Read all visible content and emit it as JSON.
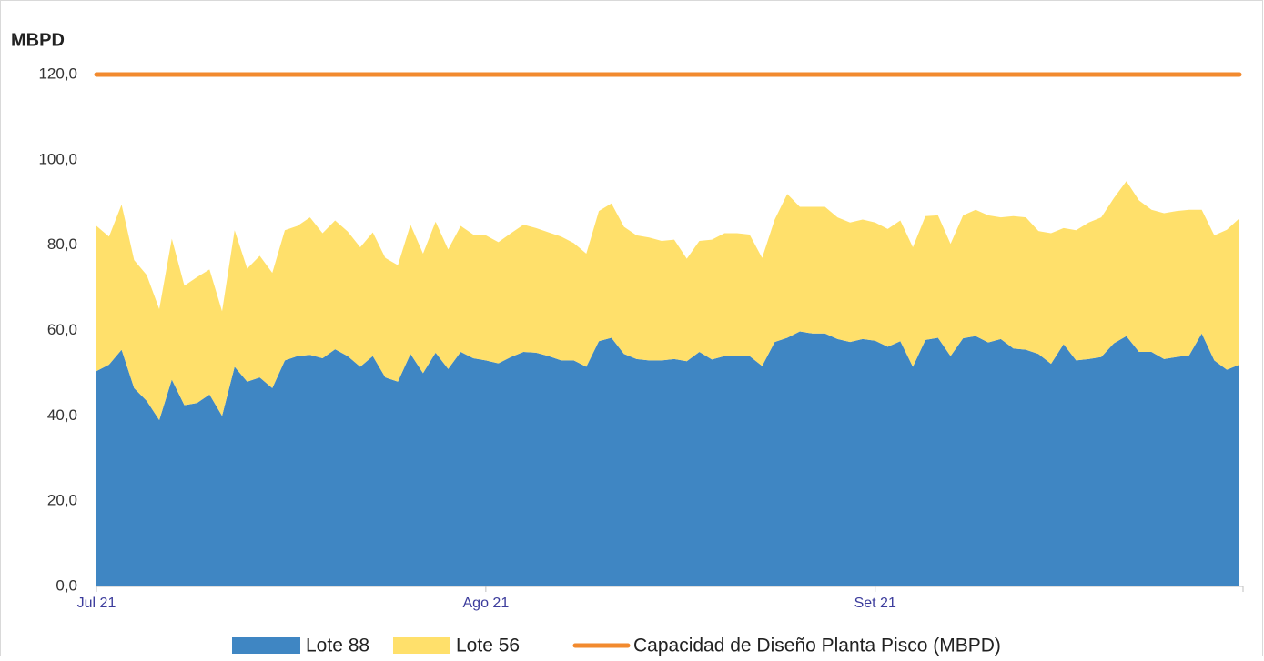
{
  "chart_data": {
    "type": "area",
    "stacked": true,
    "y_axis_label": "MBPD",
    "categories": [
      "Jul 21",
      null,
      null,
      null,
      null,
      null,
      null,
      null,
      null,
      null,
      null,
      null,
      null,
      null,
      null,
      null,
      null,
      null,
      null,
      null,
      null,
      null,
      null,
      null,
      null,
      null,
      null,
      null,
      null,
      null,
      null,
      "Ago 21",
      null,
      null,
      null,
      null,
      null,
      null,
      null,
      null,
      null,
      null,
      null,
      null,
      null,
      null,
      null,
      null,
      null,
      null,
      null,
      null,
      null,
      null,
      null,
      null,
      null,
      null,
      null,
      null,
      null,
      null,
      "Set 21",
      null,
      null,
      null,
      null,
      null,
      null,
      null,
      null,
      null,
      null,
      null,
      null,
      null,
      null,
      null,
      null,
      null,
      null,
      null,
      null,
      null,
      null,
      null,
      null,
      null,
      null,
      null,
      null,
      null
    ],
    "series": [
      {
        "name": "Lote 88",
        "color": "#3f86c3",
        "values": [
          50.5,
          52,
          55.5,
          46.5,
          43.5,
          39,
          48.5,
          42.5,
          43,
          45,
          40,
          51.5,
          48,
          49,
          46.5,
          53,
          54,
          54.3,
          53.5,
          55.6,
          54,
          51.5,
          54,
          49,
          48,
          54.5,
          50,
          54.8,
          51,
          55,
          53.5,
          53,
          52.3,
          53.8,
          55,
          54.8,
          54,
          53,
          53,
          51.5,
          57.5,
          58.3,
          54.5,
          53.3,
          53,
          53,
          53.3,
          52.8,
          55,
          53.2,
          54,
          54,
          54,
          51.7,
          57.3,
          58.3,
          59.8,
          59.3,
          59.3,
          58,
          57.3,
          58,
          57.6,
          56.2,
          57.5,
          51.5,
          57.8,
          58.3,
          54,
          58.2,
          58.7,
          57.2,
          58,
          55.8,
          55.5,
          54.5,
          52.2,
          56.8,
          53,
          53.3,
          53.8,
          57,
          58.7,
          55,
          55,
          53.3,
          53.8,
          54.2,
          59.3,
          53,
          50.8,
          52
        ]
      },
      {
        "name": "Lote 56",
        "color": "#ffe06b",
        "values": [
          34,
          30,
          34,
          30,
          29.5,
          26,
          33,
          28,
          29.5,
          29.3,
          24.5,
          32,
          26.5,
          28.5,
          27,
          30.5,
          30.5,
          32.2,
          29.3,
          30.2,
          29.2,
          28,
          29,
          28,
          27.3,
          30.3,
          28,
          30.7,
          28,
          29.5,
          29,
          29.3,
          28.4,
          29,
          29.8,
          29.2,
          29,
          29,
          27.5,
          26.5,
          30.5,
          31.5,
          29.8,
          29,
          28.8,
          28,
          28,
          24,
          26,
          28.1,
          28.8,
          28.8,
          28.5,
          25.3,
          28.7,
          33.7,
          29.2,
          29.7,
          29.7,
          28.5,
          28,
          28,
          27.7,
          27.6,
          28.3,
          28,
          29,
          28.7,
          26.3,
          28.8,
          29.6,
          29.8,
          28.5,
          31,
          31,
          28.8,
          30.6,
          27.2,
          30.5,
          32,
          32.7,
          34,
          36.3,
          35.5,
          33.3,
          34.2,
          34.2,
          34.1,
          29,
          29.3,
          32.8,
          34.3
        ]
      },
      {
        "name": "Capacidad de Diseño Planta Pisco (MBPD)",
        "color": "#f28a2e",
        "type": "line",
        "values": [
          120,
          120,
          120,
          120,
          120,
          120,
          120,
          120,
          120,
          120,
          120,
          120,
          120,
          120,
          120,
          120,
          120,
          120,
          120,
          120,
          120,
          120,
          120,
          120,
          120,
          120,
          120,
          120,
          120,
          120,
          120,
          120,
          120,
          120,
          120,
          120,
          120,
          120,
          120,
          120,
          120,
          120,
          120,
          120,
          120,
          120,
          120,
          120,
          120,
          120,
          120,
          120,
          120,
          120,
          120,
          120,
          120,
          120,
          120,
          120,
          120,
          120,
          120,
          120,
          120,
          120,
          120,
          120,
          120,
          120,
          120,
          120,
          120,
          120,
          120,
          120,
          120,
          120,
          120,
          120,
          120,
          120,
          120,
          120,
          120,
          120,
          120,
          120,
          120,
          120,
          120,
          120
        ]
      }
    ],
    "ylim": [
      0,
      120
    ],
    "yticks": [
      {
        "value": 0,
        "label": "0,0"
      },
      {
        "value": 20,
        "label": "20,0"
      },
      {
        "value": 40,
        "label": "40,0"
      },
      {
        "value": 60,
        "label": "60,0"
      },
      {
        "value": 80,
        "label": "80,0"
      },
      {
        "value": 100,
        "label": "100,0"
      },
      {
        "value": 120,
        "label": "120,0"
      }
    ],
    "grid": false
  }
}
